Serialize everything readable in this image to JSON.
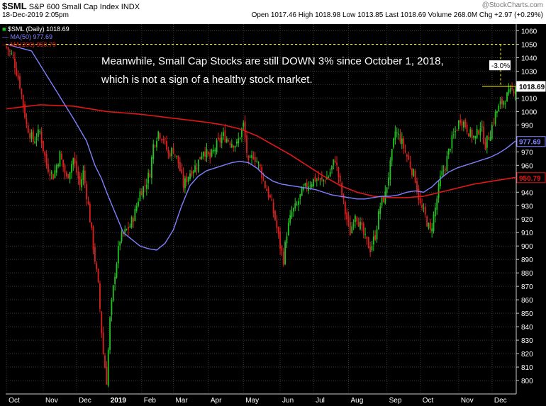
{
  "header": {
    "symbol": "$SML",
    "name": "S&P 600 Small Cap Index",
    "exchange": "INDX",
    "datetime": "18-Dec-2019 2:05pm",
    "quote": "Open 1017.46  High 1018.98  Low 1013.85  Last 1018.69  Volume 268.0M  Chg +2.97 (+0.29%)",
    "watermark": "@StockCharts.com"
  },
  "legend": {
    "line1": "$SML (Daily) 1018.69",
    "line2": "MA(50) 977.69",
    "line3": "MA(200) 950.79"
  },
  "annotation": "Meanwhile, Small Cap Stocks are still DOWN 3% since October 1, 2018, which is not a sign of a healthy stock market.",
  "colors": {
    "background": "#000000",
    "up": "#22c422",
    "down": "#e02020",
    "ma50": "#8080ff",
    "ma200": "#e01818",
    "grid": "#3a3a3a",
    "guide": "#ffff00"
  },
  "chart_data": {
    "type": "candlestick",
    "ylim": [
      790,
      1065
    ],
    "yticks": [
      800,
      810,
      820,
      830,
      840,
      850,
      860,
      870,
      880,
      890,
      900,
      910,
      920,
      930,
      940,
      950,
      960,
      970,
      980,
      990,
      1000,
      1010,
      1020,
      1030,
      1040,
      1050,
      1060
    ],
    "xticks": [
      {
        "label": "Oct",
        "i": 0
      },
      {
        "label": "Nov",
        "i": 22
      },
      {
        "label": "Dec",
        "i": 42
      },
      {
        "label": "2019",
        "i": 61
      },
      {
        "label": "Feb",
        "i": 81
      },
      {
        "label": "Mar",
        "i": 100
      },
      {
        "label": "Apr",
        "i": 121
      },
      {
        "label": "May",
        "i": 142
      },
      {
        "label": "Jun",
        "i": 164
      },
      {
        "label": "Jul",
        "i": 184
      },
      {
        "label": "Aug",
        "i": 205
      },
      {
        "label": "Sep",
        "i": 228
      },
      {
        "label": "Oct",
        "i": 248
      },
      {
        "label": "Nov",
        "i": 271
      },
      {
        "label": "Dec",
        "i": 291
      }
    ],
    "num_bars": 306,
    "close_anchors": [
      [
        0,
        1048
      ],
      [
        4,
        1040
      ],
      [
        8,
        1020
      ],
      [
        12,
        990
      ],
      [
        16,
        978
      ],
      [
        20,
        985
      ],
      [
        24,
        960
      ],
      [
        28,
        952
      ],
      [
        32,
        968
      ],
      [
        36,
        950
      ],
      [
        40,
        965
      ],
      [
        44,
        945
      ],
      [
        46,
        955
      ],
      [
        49,
        930
      ],
      [
        52,
        900
      ],
      [
        55,
        870
      ],
      [
        58,
        820
      ],
      [
        60,
        800
      ],
      [
        62,
        845
      ],
      [
        65,
        880
      ],
      [
        68,
        905
      ],
      [
        71,
        910
      ],
      [
        74,
        915
      ],
      [
        77,
        925
      ],
      [
        80,
        940
      ],
      [
        83,
        945
      ],
      [
        86,
        955
      ],
      [
        88,
        975
      ],
      [
        91,
        985
      ],
      [
        94,
        980
      ],
      [
        97,
        968
      ],
      [
        100,
        972
      ],
      [
        103,
        962
      ],
      [
        106,
        945
      ],
      [
        110,
        955
      ],
      [
        114,
        960
      ],
      [
        118,
        972
      ],
      [
        122,
        965
      ],
      [
        126,
        975
      ],
      [
        130,
        982
      ],
      [
        134,
        978
      ],
      [
        138,
        975
      ],
      [
        142,
        990
      ],
      [
        145,
        960
      ],
      [
        148,
        968
      ],
      [
        152,
        958
      ],
      [
        155,
        945
      ],
      [
        158,
        935
      ],
      [
        161,
        920
      ],
      [
        164,
        900
      ],
      [
        166,
        890
      ],
      [
        168,
        910
      ],
      [
        171,
        925
      ],
      [
        174,
        930
      ],
      [
        177,
        940
      ],
      [
        181,
        946
      ],
      [
        185,
        950
      ],
      [
        189,
        948
      ],
      [
        193,
        952
      ],
      [
        197,
        965
      ],
      [
        200,
        945
      ],
      [
        203,
        925
      ],
      [
        206,
        910
      ],
      [
        209,
        925
      ],
      [
        212,
        915
      ],
      [
        215,
        905
      ],
      [
        218,
        898
      ],
      [
        221,
        908
      ],
      [
        224,
        930
      ],
      [
        227,
        938
      ],
      [
        230,
        960
      ],
      [
        233,
        985
      ],
      [
        236,
        980
      ],
      [
        239,
        970
      ],
      [
        242,
        960
      ],
      [
        245,
        950
      ],
      [
        248,
        930
      ],
      [
        251,
        922
      ],
      [
        254,
        910
      ],
      [
        257,
        928
      ],
      [
        260,
        950
      ],
      [
        263,
        960
      ],
      [
        266,
        975
      ],
      [
        269,
        985
      ],
      [
        272,
        995
      ],
      [
        275,
        990
      ],
      [
        278,
        983
      ],
      [
        281,
        980
      ],
      [
        284,
        990
      ],
      [
        287,
        975
      ],
      [
        290,
        985
      ],
      [
        293,
        998
      ],
      [
        296,
        1005
      ],
      [
        299,
        1010
      ],
      [
        302,
        1014
      ],
      [
        305,
        1018.69
      ]
    ],
    "ma50_anchors": [
      [
        0,
        1050
      ],
      [
        15,
        1045
      ],
      [
        30,
        1015
      ],
      [
        40,
        995
      ],
      [
        48,
        978
      ],
      [
        53,
        960
      ],
      [
        57,
        950
      ],
      [
        60,
        940
      ],
      [
        65,
        925
      ],
      [
        70,
        910
      ],
      [
        75,
        905
      ],
      [
        80,
        900
      ],
      [
        85,
        898
      ],
      [
        90,
        897
      ],
      [
        95,
        902
      ],
      [
        100,
        912
      ],
      [
        105,
        930
      ],
      [
        110,
        945
      ],
      [
        115,
        952
      ],
      [
        120,
        956
      ],
      [
        125,
        958
      ],
      [
        130,
        960
      ],
      [
        135,
        962
      ],
      [
        140,
        963
      ],
      [
        145,
        962
      ],
      [
        150,
        958
      ],
      [
        155,
        952
      ],
      [
        160,
        948
      ],
      [
        165,
        946
      ],
      [
        170,
        945
      ],
      [
        175,
        944
      ],
      [
        180,
        943
      ],
      [
        185,
        942
      ],
      [
        190,
        940
      ],
      [
        195,
        938
      ],
      [
        200,
        937
      ],
      [
        205,
        936
      ],
      [
        210,
        935
      ],
      [
        215,
        935
      ],
      [
        220,
        936
      ],
      [
        225,
        937
      ],
      [
        230,
        937
      ],
      [
        235,
        938
      ],
      [
        240,
        940
      ],
      [
        245,
        941
      ],
      [
        250,
        940
      ],
      [
        255,
        944
      ],
      [
        260,
        950
      ],
      [
        265,
        955
      ],
      [
        270,
        958
      ],
      [
        275,
        960
      ],
      [
        280,
        962
      ],
      [
        285,
        964
      ],
      [
        290,
        966
      ],
      [
        295,
        969
      ],
      [
        300,
        973
      ],
      [
        305,
        978
      ]
    ],
    "ma200_anchors": [
      [
        0,
        1002
      ],
      [
        20,
        1005
      ],
      [
        40,
        1004
      ],
      [
        60,
        1000
      ],
      [
        80,
        998
      ],
      [
        100,
        995
      ],
      [
        120,
        992
      ],
      [
        130,
        990
      ],
      [
        140,
        987
      ],
      [
        150,
        982
      ],
      [
        160,
        975
      ],
      [
        170,
        968
      ],
      [
        180,
        960
      ],
      [
        190,
        952
      ],
      [
        200,
        945
      ],
      [
        210,
        940
      ],
      [
        220,
        937
      ],
      [
        230,
        936
      ],
      [
        240,
        936
      ],
      [
        250,
        937
      ],
      [
        260,
        940
      ],
      [
        270,
        943
      ],
      [
        280,
        946
      ],
      [
        290,
        948
      ],
      [
        300,
        950
      ],
      [
        305,
        951
      ]
    ],
    "value_tags": [
      {
        "label": "1018.69",
        "value": 1018.69
      },
      {
        "label": "977.69",
        "value": 977.69
      },
      {
        "label": "950.79",
        "value": 950.79
      }
    ],
    "reference": {
      "value": 1050,
      "label": "-3.0%"
    }
  }
}
